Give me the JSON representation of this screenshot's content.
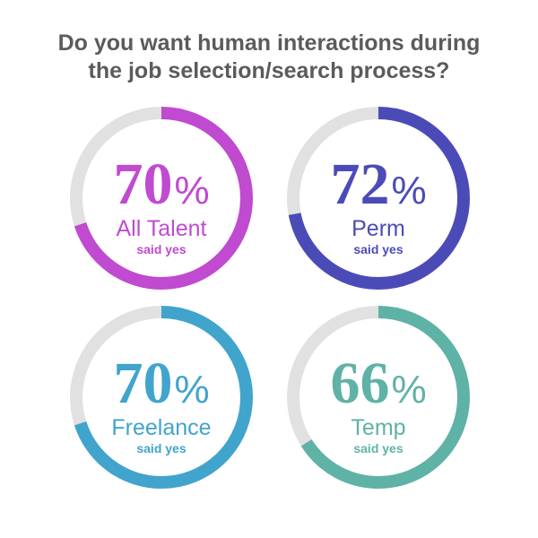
{
  "title": {
    "line1": "Do you want human interactions during",
    "line2": "the job selection/search process?"
  },
  "track_color": "#e1e1e1",
  "chart_data": {
    "type": "donut",
    "title": "Do you want human interactions during the job selection/search process?",
    "unit": "%",
    "items": [
      {
        "category": "All Talent",
        "value": 70,
        "value_label": "70",
        "percent_sign": "%",
        "caption": "said yes",
        "color": "#c04ad0"
      },
      {
        "category": "Perm",
        "value": 72,
        "value_label": "72",
        "percent_sign": "%",
        "caption": "said yes",
        "color": "#4b4bb8"
      },
      {
        "category": "Freelance",
        "value": 70,
        "value_label": "70",
        "percent_sign": "%",
        "caption": "said yes",
        "color": "#41a4cc"
      },
      {
        "category": "Temp",
        "value": 66,
        "value_label": "66",
        "percent_sign": "%",
        "caption": "said yes",
        "color": "#5fb2a6"
      }
    ]
  }
}
